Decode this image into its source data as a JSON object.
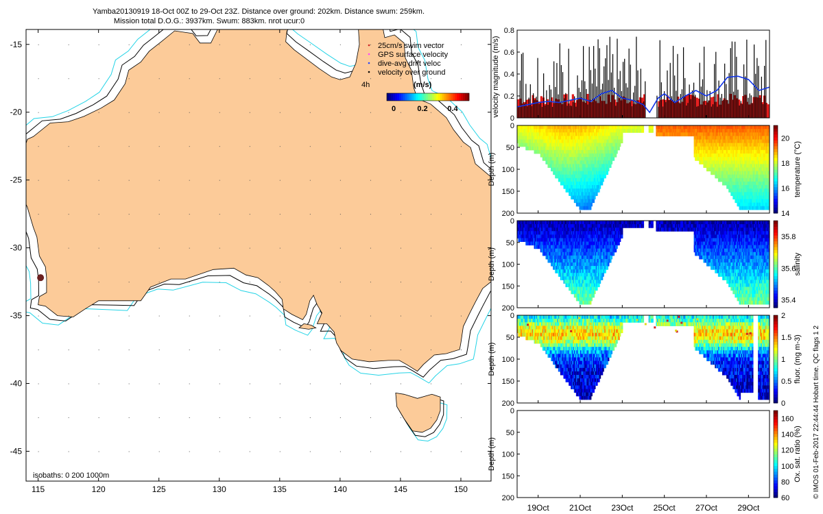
{
  "figure": {
    "title_line1": "Yamba20130919 18-Oct 00Z to 29-Oct 23Z. Distance over ground: 202km. Distance swum: 259km.",
    "title_line2": "Mission total D.O.G.: 3937km. Swum: 883km. nrot ucur:0",
    "side_label": "© IMOS 01-Feb-2017 22:44:44 Hobart time. QC flags 1  2"
  },
  "map": {
    "x_ticks": [
      115,
      120,
      125,
      130,
      135,
      140,
      145,
      150
    ],
    "y_ticks": [
      -15,
      -20,
      -25,
      -30,
      -35,
      -40,
      -45
    ],
    "xlim": [
      114,
      152.5
    ],
    "ylim": [
      -47.2,
      -13.9
    ],
    "legend_entries": [
      "25cm/s swim vector",
      "GPS surface velocity",
      "dive-avg drift veloc",
      "velocity over ground"
    ],
    "legend_colors": [
      "#cc2222",
      "#ff44ff",
      "#2244ff",
      "#000000"
    ],
    "time_step_label": "4h",
    "colorbar_label": "(m/s)",
    "colorbar_ticks": [
      "0",
      "0.2",
      "0.4"
    ],
    "isobath_label": "isobaths: 0   200  1000m",
    "land_color": "#fccb99",
    "shelf_color": "#000000",
    "deep_color": "#22d3e6"
  },
  "chart_data": [
    {
      "type": "bar",
      "ylabel": "velocity magnitude (m/s)",
      "ylim": [
        0,
        0.8
      ],
      "y_ticks": [
        "0",
        "0.2",
        "0.4",
        "0.6",
        "0.8"
      ],
      "xlim_days": [
        18,
        30
      ],
      "series": [
        {
          "kind": "line",
          "x": [
            18.0,
            18.5,
            19.0,
            19.5,
            20.0,
            20.5,
            21.0,
            21.5,
            22.0,
            22.5,
            23.0,
            23.5,
            24.0,
            24.3,
            24.7,
            25.0,
            25.5,
            26.0,
            26.5,
            27.0,
            27.5,
            28.0,
            28.5,
            29.0,
            29.5,
            30.0
          ],
          "values": [
            0.1,
            0.12,
            0.14,
            0.15,
            0.14,
            0.16,
            0.18,
            0.15,
            0.22,
            0.25,
            0.18,
            0.16,
            0.12,
            0.05,
            0.18,
            0.22,
            0.14,
            0.2,
            0.25,
            0.2,
            0.25,
            0.37,
            0.38,
            0.35,
            0.25,
            0.28
          ]
        }
      ]
    },
    {
      "type": "heatmap",
      "ylabel": "Depth (m)",
      "colorbar_label": "temperature (°C)",
      "colorbar_ticks": [
        "14",
        "16",
        "18",
        "20"
      ],
      "y_ticks": [
        "0",
        "50",
        "100",
        "150",
        "200"
      ],
      "ylim": [
        200,
        0
      ],
      "vmin": 14,
      "vmax": 21
    },
    {
      "type": "heatmap",
      "ylabel": "Depth (m)",
      "colorbar_label": "salinity",
      "colorbar_ticks": [
        "35.4",
        "35.6",
        "35.8"
      ],
      "y_ticks": [
        "0",
        "50",
        "100",
        "150",
        "200"
      ],
      "ylim": [
        200,
        0
      ],
      "vmin": 35.35,
      "vmax": 35.9
    },
    {
      "type": "heatmap",
      "ylabel": "Depth (m)",
      "colorbar_label": "fluor. (mg m-3)",
      "colorbar_ticks": [
        "0",
        "0.5",
        "1",
        "1.5",
        "2"
      ],
      "y_ticks": [
        "0",
        "50",
        "100",
        "150",
        "200"
      ],
      "ylim": [
        200,
        0
      ],
      "vmin": 0,
      "vmax": 2
    },
    {
      "type": "heatmap",
      "ylabel": "Depth (m)",
      "colorbar_label": "Ox. sat. ratio (%)",
      "colorbar_ticks": [
        "60",
        "80",
        "100",
        "120",
        "140",
        "160"
      ],
      "y_ticks": [
        "0",
        "50",
        "100",
        "150",
        "200"
      ],
      "ylim": [
        200,
        0
      ],
      "vmin": 60,
      "vmax": 170,
      "x_ticks": [
        "19Oct",
        "21Oct",
        "23Oct",
        "25Oct",
        "27Oct",
        "29Oct"
      ]
    }
  ]
}
